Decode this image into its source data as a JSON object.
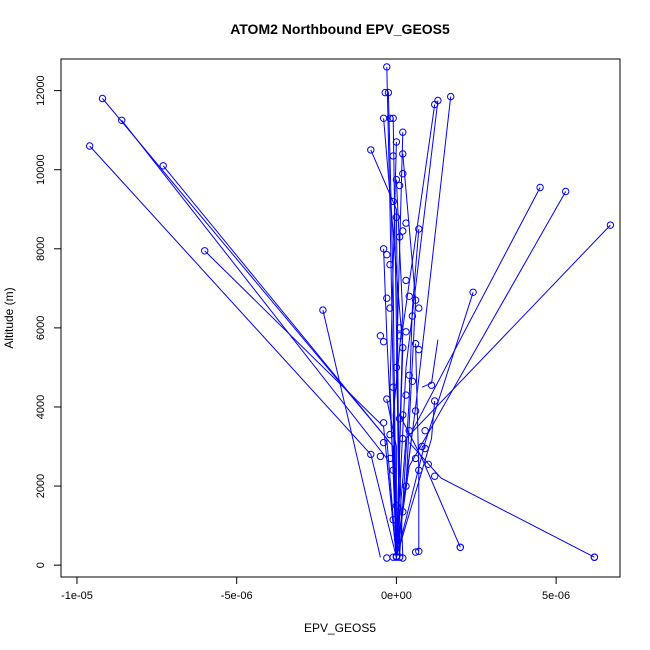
{
  "chart_data": {
    "type": "line",
    "title": "ATOM2 Northbound EPV_GEOS5",
    "xlabel": "EPV_GEOS5",
    "ylabel": "Altitude (m)",
    "xlim": [
      -1.05e-05,
      7e-06
    ],
    "ylim": [
      -300,
      12800
    ],
    "x_ticks": [
      {
        "value": -1e-05,
        "label": "-1e-05"
      },
      {
        "value": -5e-06,
        "label": "-5e-06"
      },
      {
        "value": 0,
        "label": "0e+00"
      },
      {
        "value": 5e-06,
        "label": "5e-06"
      }
    ],
    "y_ticks": [
      {
        "value": 0,
        "label": "0"
      },
      {
        "value": 2000,
        "label": "2000"
      },
      {
        "value": 4000,
        "label": "4000"
      },
      {
        "value": 6000,
        "label": "6000"
      },
      {
        "value": 8000,
        "label": "8000"
      },
      {
        "value": 10000,
        "label": "10000"
      },
      {
        "value": 12000,
        "label": "12000"
      }
    ],
    "series_color": "#0000ff",
    "series": [
      {
        "segments": [
          [
            [
              -9.2e-06,
              11800
            ],
            [
              -3e-07,
              3200
            ],
            [
              0,
              200
            ]
          ],
          [
            [
              -8.6e-06,
              11250
            ],
            [
              -3e-07,
              2700
            ],
            [
              0,
              200
            ]
          ],
          [
            [
              -9.6e-06,
              10600
            ],
            [
              -8e-07,
              2800
            ],
            [
              0,
              200
            ]
          ],
          [
            [
              -7.3e-06,
              10100
            ],
            [
              -1e-07,
              3000
            ],
            [
              0,
              200
            ]
          ],
          [
            [
              -6e-06,
              7950
            ],
            [
              -4e-07,
              3500
            ],
            [
              0,
              200
            ]
          ],
          [
            [
              -2.3e-06,
              6450
            ],
            [
              -5e-07,
              200
            ]
          ],
          [
            [
              6.7e-06,
              8600
            ],
            [
              3e-07,
              3200
            ],
            [
              0,
              200
            ]
          ],
          [
            [
              5.3e-06,
              9450
            ],
            [
              4e-07,
              2500
            ],
            [
              0,
              200
            ]
          ],
          [
            [
              4.5e-06,
              9550
            ],
            [
              5e-07,
              3400
            ],
            [
              0,
              200
            ]
          ],
          [
            [
              2.4e-06,
              6900
            ],
            [
              9e-07,
              3100
            ],
            [
              0,
              200
            ]
          ],
          [
            [
              6.2e-06,
              200
            ],
            [
              1.4e-06,
              2200
            ],
            [
              4e-07,
              3100
            ]
          ],
          [
            [
              2e-06,
              450
            ],
            [
              8e-07,
              2700
            ],
            [
              1e-07,
              3800
            ]
          ],
          [
            [
              1.7e-06,
              11850
            ],
            [
              6e-07,
              4000
            ],
            [
              0,
              200
            ]
          ],
          [
            [
              1.3e-06,
              11750
            ],
            [
              3e-07,
              5000
            ],
            [
              0,
              200
            ]
          ],
          [
            [
              1.2e-06,
              11650
            ],
            [
              2e-07,
              6000
            ],
            [
              0,
              200
            ]
          ],
          [
            [
              -3e-07,
              12600
            ],
            [
              -2e-07,
              9000
            ],
            [
              0,
              200
            ]
          ],
          [
            [
              -2.5e-07,
              11950
            ],
            [
              -1e-07,
              7000
            ],
            [
              0,
              200
            ]
          ],
          [
            [
              -8e-07,
              10500
            ],
            [
              0,
              9000
            ],
            [
              1e-07,
              200
            ]
          ],
          [
            [
              -4e-07,
              11300
            ],
            [
              2e-07,
              5500
            ],
            [
              0,
              200
            ]
          ],
          [
            [
              -1e-07,
              11300
            ],
            [
              0,
              6000
            ],
            [
              1e-07,
              200
            ]
          ],
          [
            [
              2e-07,
              10950
            ],
            [
              0,
              5000
            ],
            [
              2e-07,
              200
            ]
          ],
          [
            [
              0,
              10700
            ],
            [
              -2e-07,
              4500
            ],
            [
              0,
              200
            ]
          ],
          [
            [
              2e-07,
              10400
            ],
            [
              6e-07,
              6700
            ],
            [
              3e-07,
              2000
            ],
            [
              0,
              200
            ]
          ],
          [
            [
              0,
              9750
            ],
            [
              2e-07,
              6300
            ],
            [
              -1e-07,
              3800
            ],
            [
              0,
              200
            ]
          ],
          [
            [
              -4e-07,
              8000
            ],
            [
              -3e-07,
              5800
            ],
            [
              -1e-07,
              2400
            ],
            [
              0,
              200
            ]
          ],
          [
            [
              8e-07,
              4500
            ],
            [
              1.1e-06,
              4600
            ],
            [
              1.3e-06,
              5700
            ]
          ],
          [
            [
              7e-07,
              350
            ],
            [
              7e-07,
              2400
            ],
            [
              6e-07,
              5600
            ]
          ],
          [
            [
              -3e-07,
              4200
            ],
            [
              0,
              3000
            ],
            [
              0,
              1500
            ],
            [
              0,
              200
            ]
          ],
          [
            [
              7e-07,
              8500
            ],
            [
              5e-07,
              6500
            ],
            [
              4e-07,
              4200
            ],
            [
              1e-07,
              200
            ]
          ],
          [
            [
              1.2e-06,
              4150
            ],
            [
              1.1e-06,
              3200
            ],
            [
              0,
              200
            ]
          ]
        ],
        "points": [
          [
            -9.2e-06,
            11800
          ],
          [
            -8.6e-06,
            11250
          ],
          [
            -9.6e-06,
            10600
          ],
          [
            -7.3e-06,
            10100
          ],
          [
            -6e-06,
            7950
          ],
          [
            -2.3e-06,
            6450
          ],
          [
            6.7e-06,
            8600
          ],
          [
            5.3e-06,
            9450
          ],
          [
            4.5e-06,
            9550
          ],
          [
            2.4e-06,
            6900
          ],
          [
            6.2e-06,
            200
          ],
          [
            2e-06,
            450
          ],
          [
            1.7e-06,
            11850
          ],
          [
            1.3e-06,
            11750
          ],
          [
            1.2e-06,
            11650
          ],
          [
            -3e-07,
            12600
          ],
          [
            -2.5e-07,
            11950
          ],
          [
            -3.5e-07,
            11950
          ],
          [
            -8e-07,
            10500
          ],
          [
            -4e-07,
            11300
          ],
          [
            -2e-07,
            11300
          ],
          [
            -1e-07,
            11300
          ],
          [
            2e-07,
            10950
          ],
          [
            0,
            10700
          ],
          [
            2e-07,
            10400
          ],
          [
            -1e-07,
            10350
          ],
          [
            0,
            9750
          ],
          [
            1e-07,
            9600
          ],
          [
            -4e-07,
            8000
          ],
          [
            -3e-07,
            7850
          ],
          [
            -5e-07,
            5800
          ],
          [
            -4e-07,
            5650
          ],
          [
            -3e-07,
            6750
          ],
          [
            -2e-07,
            6500
          ],
          [
            3e-07,
            8650
          ],
          [
            2e-07,
            8450
          ],
          [
            7e-07,
            8500
          ],
          [
            4e-07,
            6800
          ],
          [
            6e-07,
            6700
          ],
          [
            7e-07,
            6500
          ],
          [
            5e-07,
            6300
          ],
          [
            3e-07,
            5900
          ],
          [
            6e-07,
            5600
          ],
          [
            7e-07,
            5450
          ],
          [
            4e-07,
            4800
          ],
          [
            5e-07,
            4650
          ],
          [
            1.2e-06,
            4150
          ],
          [
            1.1e-06,
            4550
          ],
          [
            -3e-07,
            4200
          ],
          [
            -4e-07,
            3600
          ],
          [
            -4e-07,
            3100
          ],
          [
            -5e-07,
            2750
          ],
          [
            -8e-07,
            2800
          ],
          [
            -2e-07,
            2700
          ],
          [
            6e-07,
            3900
          ],
          [
            9e-07,
            3400
          ],
          [
            8e-07,
            3000
          ],
          [
            9e-07,
            2950
          ],
          [
            1e-06,
            2550
          ],
          [
            1.2e-06,
            2250
          ],
          [
            6e-07,
            2700
          ],
          [
            7e-07,
            2400
          ],
          [
            2e-07,
            3800
          ],
          [
            1e-07,
            3700
          ],
          [
            -1e-07,
            2400
          ],
          [
            0,
            1500
          ],
          [
            2e-07,
            1350
          ],
          [
            -1e-07,
            1150
          ],
          [
            7e-07,
            350
          ],
          [
            6e-07,
            330
          ],
          [
            -3e-07,
            180
          ],
          [
            0,
            200
          ],
          [
            1e-07,
            200
          ],
          [
            2e-07,
            180
          ],
          [
            0,
            220
          ],
          [
            -1e-07,
            200
          ],
          [
            2e-06,
            450
          ],
          [
            6.2e-06,
            200
          ],
          [
            0,
            5000
          ],
          [
            2e-07,
            5500
          ],
          [
            -1e-07,
            4500
          ],
          [
            1e-07,
            6000
          ],
          [
            3e-07,
            7200
          ],
          [
            -2e-07,
            7600
          ],
          [
            1e-07,
            8300
          ],
          [
            -1e-07,
            9200
          ],
          [
            2e-07,
            9900
          ],
          [
            0,
            8800
          ],
          [
            3e-07,
            4300
          ],
          [
            4e-07,
            3400
          ],
          [
            2e-07,
            3200
          ],
          [
            -2e-07,
            3300
          ],
          [
            3e-07,
            2000
          ],
          [
            1e-07,
            5800
          ]
        ]
      }
    ]
  }
}
